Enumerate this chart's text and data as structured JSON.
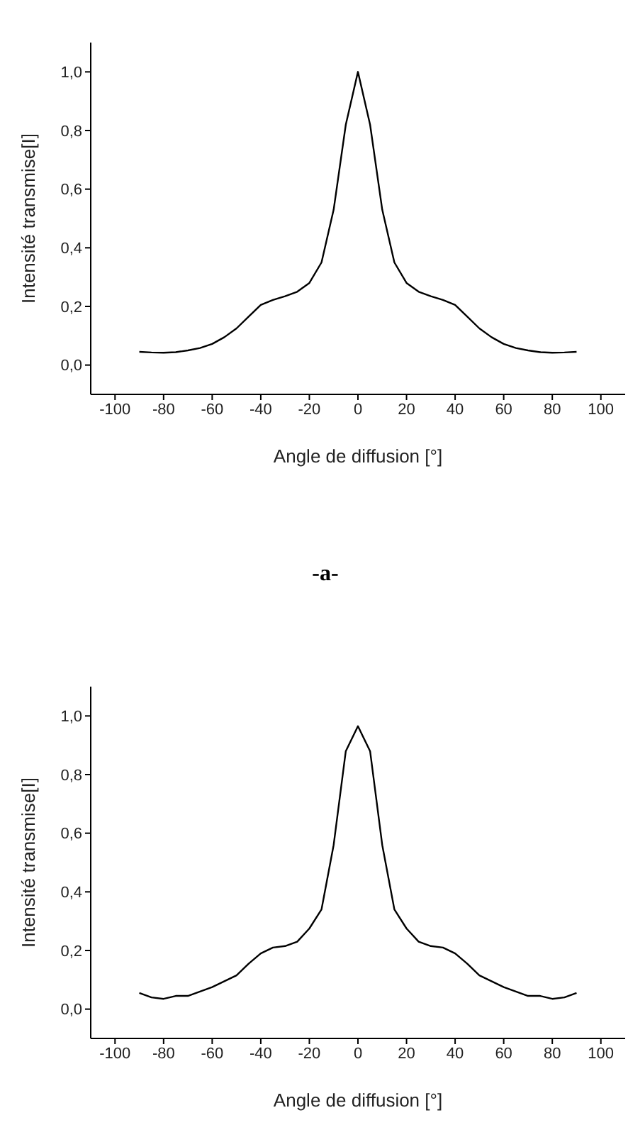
{
  "chart_data": [
    {
      "type": "line",
      "xlabel": "Angle de diffusion [°]",
      "ylabel": "Intensité transmise[I]",
      "annotations": [
        "-a-"
      ],
      "x": [
        -90,
        -85,
        -80,
        -75,
        -70,
        -65,
        -60,
        -55,
        -50,
        -45,
        -40,
        -35,
        -30,
        -25,
        -20,
        -15,
        -10,
        -5,
        0,
        5,
        10,
        15,
        20,
        25,
        30,
        35,
        40,
        45,
        50,
        55,
        60,
        65,
        70,
        75,
        80,
        85,
        90
      ],
      "series": [
        {
          "color": "#000000",
          "values": [
            0.045,
            0.043,
            0.042,
            0.044,
            0.05,
            0.058,
            0.072,
            0.095,
            0.125,
            0.165,
            0.205,
            0.222,
            0.235,
            0.25,
            0.28,
            0.35,
            0.53,
            0.82,
            1.0,
            0.82,
            0.53,
            0.35,
            0.28,
            0.25,
            0.235,
            0.222,
            0.205,
            0.165,
            0.125,
            0.095,
            0.072,
            0.058,
            0.05,
            0.044,
            0.042,
            0.043,
            0.045
          ]
        }
      ],
      "xlim": [
        -110,
        110
      ],
      "xticks": [
        -100,
        -80,
        -60,
        -40,
        -20,
        0,
        20,
        40,
        60,
        80,
        100
      ],
      "ylim": [
        -0.1,
        1.1
      ],
      "yticks": [
        {
          "value": 0,
          "label": "0,0"
        },
        {
          "value": 0.2,
          "label": "0,2"
        },
        {
          "value": 0.4,
          "label": "0,4"
        },
        {
          "value": 0.6,
          "label": "0,6"
        },
        {
          "value": 0.8,
          "label": "0,8"
        },
        {
          "value": 1,
          "label": "1,0"
        }
      ]
    },
    {
      "type": "line",
      "xlabel": "Angle de diffusion [°]",
      "ylabel": "Intensité transmise[I]",
      "x": [
        -90,
        -85,
        -80,
        -75,
        -70,
        -65,
        -60,
        -55,
        -50,
        -45,
        -40,
        -35,
        -30,
        -25,
        -20,
        -15,
        -10,
        -5,
        0,
        5,
        10,
        15,
        20,
        25,
        30,
        35,
        40,
        45,
        50,
        55,
        60,
        65,
        70,
        75,
        80,
        85,
        90
      ],
      "series": [
        {
          "color": "#000000",
          "values": [
            0.055,
            0.04,
            0.035,
            0.045,
            0.045,
            0.06,
            0.075,
            0.095,
            0.115,
            0.155,
            0.19,
            0.21,
            0.215,
            0.23,
            0.275,
            0.34,
            0.56,
            0.88,
            0.965,
            0.88,
            0.56,
            0.34,
            0.275,
            0.23,
            0.215,
            0.21,
            0.19,
            0.155,
            0.115,
            0.095,
            0.075,
            0.06,
            0.045,
            0.045,
            0.035,
            0.04,
            0.055
          ]
        }
      ],
      "xlim": [
        -110,
        110
      ],
      "xticks": [
        -100,
        -80,
        -60,
        -40,
        -20,
        0,
        20,
        40,
        60,
        80,
        100
      ],
      "ylim": [
        -0.1,
        1.1
      ],
      "yticks": [
        {
          "value": 0,
          "label": "0,0"
        },
        {
          "value": 0.2,
          "label": "0,2"
        },
        {
          "value": 0.4,
          "label": "0,4"
        },
        {
          "value": 0.6,
          "label": "0,6"
        },
        {
          "value": 0.8,
          "label": "0,8"
        },
        {
          "value": 1,
          "label": "1,0"
        }
      ]
    }
  ]
}
